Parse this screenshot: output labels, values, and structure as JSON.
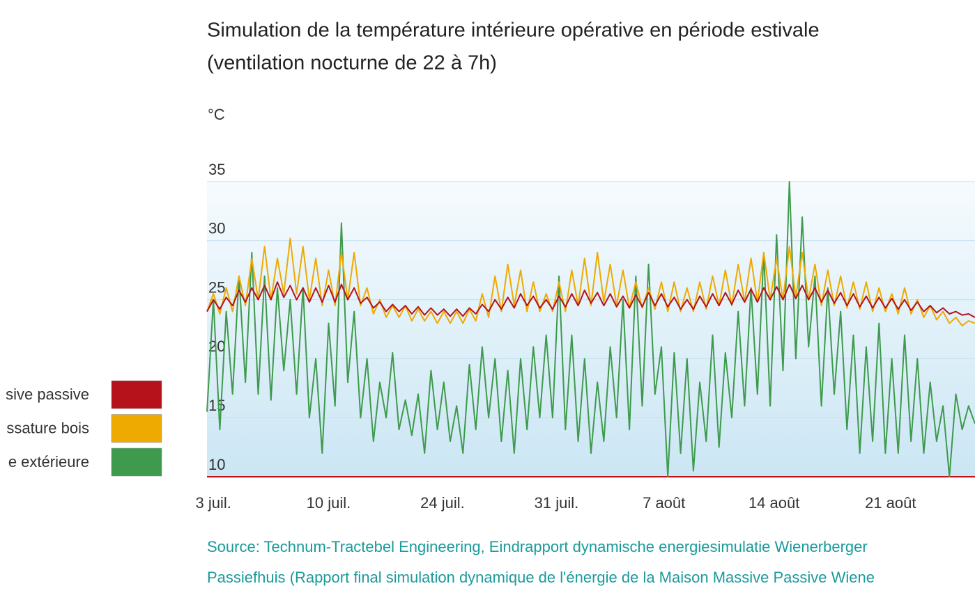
{
  "chart_data": {
    "type": "line",
    "title": [
      "Simulation de la température intérieure opérative en période estivale",
      "(ventilation nocturne de 22 à 7h)"
    ],
    "y_label": "°C",
    "source": [
      "Source: Technum-Tractebel Engineering, Eindrapport dynamische energiesimulatie Wienerberger",
      "Passiefhuis (Rapport final simulation dynamique de l'énergie de la Maison Massive Passive Wiene"
    ],
    "xlim": [
      0,
      60
    ],
    "ylim": [
      10,
      35
    ],
    "yticks": [
      10,
      15,
      20,
      25,
      30,
      35
    ],
    "grid": true,
    "xticks": [
      {
        "value": 0.5,
        "label": "3 juil."
      },
      {
        "value": 9.5,
        "label": "10 juil."
      },
      {
        "value": 18.4,
        "label": "24 juil."
      },
      {
        "value": 27.3,
        "label": "31 juil."
      },
      {
        "value": 35.7,
        "label": "7 août"
      },
      {
        "value": 44.3,
        "label": "14 août"
      },
      {
        "value": 53.4,
        "label": "21 août"
      }
    ],
    "x": [
      0,
      0.5,
      1,
      1.5,
      2,
      2.5,
      3,
      3.5,
      4,
      4.5,
      5,
      5.5,
      6,
      6.5,
      7,
      7.5,
      8,
      8.5,
      9,
      9.5,
      10,
      10.5,
      11,
      11.5,
      12,
      12.5,
      13,
      13.5,
      14,
      14.5,
      15,
      15.5,
      16,
      16.5,
      17,
      17.5,
      18,
      18.5,
      19,
      19.5,
      20,
      20.5,
      21,
      21.5,
      22,
      22.5,
      23,
      23.5,
      24,
      24.5,
      25,
      25.5,
      26,
      26.5,
      27,
      27.5,
      28,
      28.5,
      29,
      29.5,
      30,
      30.5,
      31,
      31.5,
      32,
      32.5,
      33,
      33.5,
      34,
      34.5,
      35,
      35.5,
      36,
      36.5,
      37,
      37.5,
      38,
      38.5,
      39,
      39.5,
      40,
      40.5,
      41,
      41.5,
      42,
      42.5,
      43,
      43.5,
      44,
      44.5,
      45,
      45.5,
      46,
      46.5,
      47,
      47.5,
      48,
      48.5,
      49,
      49.5,
      50,
      50.5,
      51,
      51.5,
      52,
      52.5,
      53,
      53.5,
      54,
      54.5,
      55,
      55.5,
      56,
      56.5,
      57,
      57.5,
      58,
      58.5,
      59,
      59.5,
      60
    ],
    "series": [
      {
        "name": "e extérieure",
        "color": "#3e9a4c",
        "values": [
          15.5,
          25,
          14,
          24,
          17,
          27,
          18,
          29,
          17,
          27,
          16.5,
          26,
          19,
          25,
          17,
          26,
          15,
          20,
          12,
          23,
          16,
          31.5,
          18,
          24,
          15,
          20,
          13,
          18,
          15,
          20.5,
          14,
          16.5,
          13.5,
          17,
          12,
          19,
          14,
          18,
          13,
          16,
          12,
          19.5,
          14,
          21,
          15,
          20,
          13,
          19,
          12,
          20,
          14,
          21,
          15,
          22,
          15,
          27,
          14,
          22,
          13,
          20,
          12,
          18,
          13,
          21,
          15,
          25,
          14,
          27,
          16,
          28,
          17,
          21,
          10,
          20.5,
          12,
          20,
          10.5,
          18,
          13,
          22,
          12.5,
          20.5,
          15,
          24,
          16,
          26,
          17,
          29,
          16,
          30.5,
          19,
          35,
          20,
          32,
          21,
          27,
          16,
          26,
          17,
          24,
          14,
          22,
          12,
          21,
          13,
          23,
          12,
          20,
          12,
          22,
          13,
          20,
          12,
          18,
          13,
          16,
          10,
          17,
          14,
          16,
          14.5
        ]
      },
      {
        "name": "ssature bois",
        "color": "#eeaa00",
        "values": [
          24,
          25.5,
          23.8,
          26,
          24,
          27,
          24.5,
          28.5,
          25,
          29.5,
          25,
          28.5,
          25.5,
          30.2,
          25.5,
          29.5,
          25,
          28.5,
          24.5,
          27.5,
          24.5,
          29,
          25,
          29,
          24.5,
          26,
          23.8,
          25,
          23.5,
          24.5,
          23.5,
          24.5,
          23.2,
          24.2,
          23.2,
          24,
          23,
          24,
          23,
          24,
          23,
          24.2,
          23.2,
          25.5,
          23.5,
          27,
          24,
          28,
          24.5,
          27.5,
          24,
          26.5,
          24,
          25.5,
          24,
          26.5,
          24,
          27.5,
          24.5,
          28.5,
          24.5,
          29,
          24.8,
          28,
          24.5,
          27.5,
          24.3,
          26.5,
          24.3,
          26,
          24.2,
          26.5,
          24,
          26.5,
          24,
          26,
          24,
          26.5,
          24.2,
          27,
          24.5,
          27.5,
          24.5,
          28,
          24.8,
          28.5,
          24.8,
          29,
          25,
          28.5,
          25,
          29.5,
          25.2,
          29,
          25,
          28,
          24.5,
          27.5,
          24.5,
          27,
          24.3,
          26.5,
          24.2,
          26.5,
          24,
          26,
          24,
          25.5,
          23.8,
          26,
          23.8,
          25,
          23.5,
          24.5,
          23.3,
          24,
          23,
          23.5,
          22.8,
          23.2,
          23
        ]
      },
      {
        "name": "sive passive",
        "color": "#b5121b",
        "values": [
          24,
          25,
          24.2,
          25.2,
          24.5,
          25.8,
          24.8,
          26,
          25,
          26.2,
          25,
          26.5,
          25.2,
          26.2,
          25,
          26,
          24.8,
          26,
          24.8,
          26.2,
          24.8,
          26.3,
          25,
          26,
          24.7,
          25.2,
          24.3,
          24.8,
          24,
          24.6,
          24,
          24.5,
          23.8,
          24.4,
          23.7,
          24.3,
          23.7,
          24.2,
          23.6,
          24.2,
          23.6,
          24.3,
          23.8,
          24.6,
          24,
          25,
          24.2,
          25.2,
          24.3,
          25.5,
          24.5,
          25.3,
          24.3,
          25,
          24.2,
          25.3,
          24.4,
          25.5,
          24.5,
          25.8,
          24.7,
          25.6,
          24.5,
          25.5,
          24.4,
          25.3,
          24.3,
          25.4,
          24.4,
          25.6,
          24.5,
          25.5,
          24.4,
          25.2,
          24.2,
          25,
          24.2,
          25.3,
          24.4,
          25.5,
          24.5,
          25.6,
          24.6,
          25.8,
          24.8,
          25.9,
          24.8,
          26,
          25,
          26.1,
          25,
          26.3,
          25.1,
          26.2,
          25,
          26,
          24.8,
          25.8,
          24.7,
          25.6,
          24.5,
          25.5,
          24.4,
          25.3,
          24.3,
          25.2,
          24.3,
          25.1,
          24.2,
          25,
          24.1,
          24.8,
          24,
          24.5,
          23.9,
          24.3,
          23.8,
          24,
          23.7,
          23.8,
          23.5
        ]
      }
    ]
  }
}
